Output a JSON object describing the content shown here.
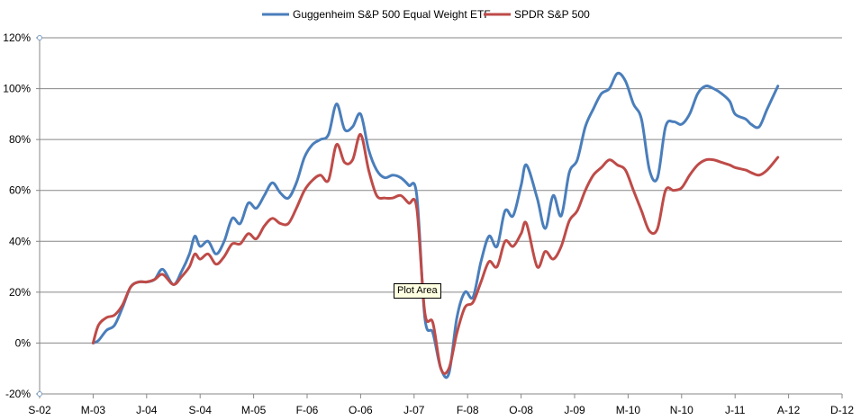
{
  "chart_data": {
    "type": "line",
    "title": "",
    "xlabel": "",
    "ylabel": "",
    "ylim": [
      -20,
      120
    ],
    "grid": true,
    "legend_position": "top",
    "x_tick_labels": [
      "S-02",
      "M-03",
      "J-04",
      "S-04",
      "M-05",
      "F-06",
      "O-06",
      "J-07",
      "F-08",
      "O-08",
      "J-09",
      "M-10",
      "N-10",
      "J-11",
      "A-12",
      "D-12"
    ],
    "y_tick_labels": [
      "-20%",
      "0%",
      "20%",
      "40%",
      "60%",
      "80%",
      "100%",
      "120%"
    ],
    "y_ticks": [
      -20,
      0,
      20,
      40,
      60,
      80,
      100,
      120
    ],
    "series": [
      {
        "name": "Guggenheim S&P 500 Equal Weight ETF",
        "color": "#4a7ebb",
        "x": [
          1,
          1.1,
          1.25,
          1.4,
          1.55,
          1.7,
          1.85,
          2,
          2.15,
          2.3,
          2.5,
          2.65,
          2.8,
          2.9,
          3,
          3.15,
          3.3,
          3.45,
          3.6,
          3.75,
          3.9,
          4.05,
          4.2,
          4.35,
          4.5,
          4.65,
          4.8,
          4.95,
          5.1,
          5.25,
          5.4,
          5.55,
          5.7,
          5.85,
          6,
          6.15,
          6.3,
          6.45,
          6.6,
          6.75,
          6.9,
          7.05,
          7.2,
          7.35,
          7.5,
          7.65,
          7.8,
          7.95,
          8.1,
          8.25,
          8.4,
          8.55,
          8.7,
          8.85,
          9,
          9.1,
          9.3,
          9.45,
          9.6,
          9.75,
          9.9,
          10.05,
          10.2,
          10.35,
          10.5,
          10.65,
          10.8,
          10.95,
          11.1,
          11.25,
          11.4,
          11.55,
          11.7,
          11.85,
          12,
          12.15,
          12.3,
          12.45,
          12.6,
          12.75,
          12.9,
          13,
          13.2,
          13.3,
          13.45,
          13.6,
          13.8
        ],
        "values": [
          0,
          1,
          5,
          7,
          14,
          22,
          24,
          24,
          25,
          29,
          23,
          28,
          35,
          42,
          38,
          40,
          35,
          40,
          49,
          47,
          55,
          53,
          58,
          63,
          59,
          57,
          63,
          73,
          78,
          80,
          82,
          94,
          84,
          85,
          90,
          76,
          68,
          65,
          66,
          65,
          62,
          58,
          10,
          4,
          -10,
          -12,
          10,
          20,
          18,
          32,
          42,
          38,
          52,
          50,
          62,
          70,
          57,
          45,
          58,
          50,
          67,
          72,
          85,
          92,
          98,
          100,
          106,
          103,
          94,
          88,
          68,
          65,
          85,
          87,
          86,
          90,
          98,
          101,
          100,
          98,
          95,
          90,
          88,
          86,
          85,
          92,
          101
        ]
      },
      {
        "name": "SPDR S&P 500",
        "color": "#be4b48",
        "x": [
          1,
          1.1,
          1.25,
          1.4,
          1.55,
          1.7,
          1.85,
          2,
          2.15,
          2.3,
          2.5,
          2.65,
          2.8,
          2.9,
          3,
          3.15,
          3.3,
          3.45,
          3.6,
          3.75,
          3.9,
          4.05,
          4.2,
          4.35,
          4.5,
          4.65,
          4.8,
          4.95,
          5.1,
          5.25,
          5.4,
          5.55,
          5.7,
          5.85,
          6,
          6.15,
          6.3,
          6.45,
          6.6,
          6.75,
          6.9,
          7.05,
          7.2,
          7.35,
          7.5,
          7.65,
          7.8,
          7.95,
          8.1,
          8.25,
          8.4,
          8.55,
          8.7,
          8.85,
          9,
          9.1,
          9.3,
          9.45,
          9.6,
          9.75,
          9.9,
          10.05,
          10.2,
          10.35,
          10.5,
          10.65,
          10.8,
          10.95,
          11.1,
          11.25,
          11.4,
          11.55,
          11.7,
          11.85,
          12,
          12.15,
          12.3,
          12.45,
          12.6,
          12.75,
          12.9,
          13,
          13.2,
          13.3,
          13.45,
          13.6,
          13.8
        ],
        "values": [
          0,
          7,
          10,
          11,
          15,
          22,
          24,
          24,
          25,
          27,
          23,
          26,
          30,
          35,
          33,
          35,
          31,
          34,
          39,
          39,
          43,
          41,
          46,
          49,
          47,
          47,
          53,
          60,
          64,
          66,
          64,
          78,
          71,
          72,
          82,
          68,
          58,
          57,
          57,
          58,
          55,
          53,
          12,
          8,
          -10,
          -10,
          4,
          14,
          16,
          24,
          32,
          30,
          40,
          38,
          43,
          47,
          30,
          36,
          33,
          38,
          48,
          52,
          60,
          66,
          69,
          72,
          70,
          68,
          60,
          52,
          44,
          45,
          60,
          60,
          61,
          66,
          70,
          72,
          72,
          71,
          70,
          69,
          68,
          67,
          66,
          68,
          73
        ]
      }
    ]
  },
  "tooltip_text": "Plot Area"
}
